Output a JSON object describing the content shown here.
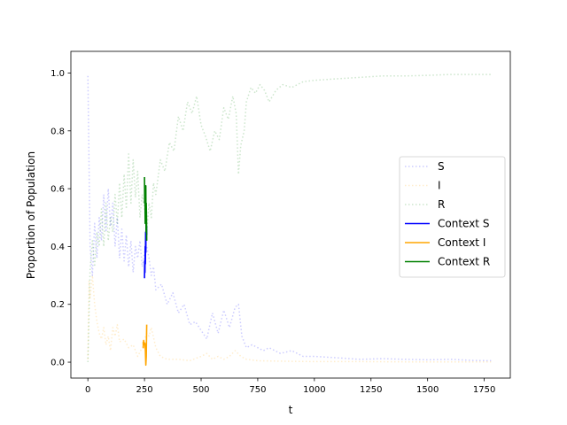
{
  "chart_data": {
    "type": "line",
    "title": "",
    "xlabel": "t",
    "ylabel": "Proportion of Population",
    "xlim": [
      -75,
      1865
    ],
    "ylim": [
      -0.055,
      1.075
    ],
    "xticks": [
      0,
      250,
      500,
      750,
      1000,
      1250,
      1500,
      1750
    ],
    "yticks": [
      0.0,
      0.2,
      0.4,
      0.6,
      0.8,
      1.0
    ],
    "xtick_labels": [
      "0",
      "250",
      "500",
      "750",
      "1000",
      "1250",
      "1500",
      "1750"
    ],
    "ytick_labels": [
      "0.0",
      "0.2",
      "0.4",
      "0.6",
      "0.8",
      "1.0"
    ],
    "grid": false,
    "legend_position": "center-right",
    "series": [
      {
        "name": "S",
        "color": "#0000ff",
        "style": "dotted",
        "alpha": 0.2,
        "x": [
          0,
          10,
          20,
          30,
          40,
          50,
          60,
          70,
          80,
          90,
          100,
          110,
          120,
          130,
          140,
          150,
          160,
          170,
          180,
          190,
          200,
          210,
          220,
          230,
          240,
          250,
          260,
          270,
          280,
          290,
          300,
          325,
          350,
          375,
          400,
          425,
          450,
          475,
          500,
          525,
          550,
          575,
          600,
          625,
          650,
          665,
          680,
          700,
          725,
          750,
          775,
          800,
          850,
          900,
          950,
          1000,
          1100,
          1200,
          1300,
          1400,
          1500,
          1600,
          1700,
          1780
        ],
        "y": [
          0.99,
          0.4,
          0.3,
          0.48,
          0.36,
          0.5,
          0.42,
          0.58,
          0.45,
          0.6,
          0.47,
          0.55,
          0.4,
          0.5,
          0.36,
          0.46,
          0.35,
          0.44,
          0.33,
          0.42,
          0.31,
          0.4,
          0.36,
          0.42,
          0.33,
          0.38,
          0.4,
          0.36,
          0.3,
          0.33,
          0.25,
          0.27,
          0.2,
          0.24,
          0.17,
          0.2,
          0.13,
          0.14,
          0.11,
          0.08,
          0.17,
          0.1,
          0.18,
          0.12,
          0.19,
          0.2,
          0.09,
          0.05,
          0.06,
          0.05,
          0.04,
          0.05,
          0.03,
          0.04,
          0.02,
          0.02,
          0.015,
          0.01,
          0.012,
          0.01,
          0.008,
          0.01,
          0.006,
          0.005
        ]
      },
      {
        "name": "I",
        "color": "#ffa500",
        "style": "dotted",
        "alpha": 0.2,
        "x": [
          0,
          5,
          10,
          20,
          30,
          40,
          50,
          60,
          70,
          80,
          90,
          100,
          110,
          120,
          130,
          140,
          160,
          180,
          200,
          220,
          240,
          250,
          260,
          270,
          280,
          300,
          320,
          350,
          400,
          450,
          500,
          525,
          550,
          575,
          600,
          625,
          650,
          675,
          700,
          750,
          800,
          900,
          1000,
          1200,
          1400,
          1600,
          1780
        ],
        "y": [
          0.01,
          0.28,
          0.22,
          0.3,
          0.2,
          0.14,
          0.1,
          0.08,
          0.12,
          0.06,
          0.09,
          0.04,
          0.12,
          0.09,
          0.13,
          0.07,
          0.08,
          0.05,
          0.06,
          0.02,
          0.05,
          0.08,
          0.1,
          0.09,
          0.12,
          0.05,
          0.02,
          0.01,
          0.01,
          0.005,
          0.02,
          0.03,
          0.01,
          0.02,
          0.01,
          0.02,
          0.04,
          0.02,
          0.01,
          0.005,
          0.004,
          0.003,
          0.002,
          0.002,
          0.001,
          0.001,
          0.001
        ]
      },
      {
        "name": "R",
        "color": "#008000",
        "style": "dotted",
        "alpha": 0.2,
        "x": [
          0,
          10,
          20,
          30,
          40,
          50,
          60,
          70,
          80,
          90,
          100,
          110,
          120,
          130,
          140,
          150,
          160,
          170,
          180,
          190,
          200,
          210,
          220,
          230,
          240,
          250,
          260,
          270,
          280,
          290,
          300,
          320,
          340,
          360,
          380,
          400,
          420,
          440,
          460,
          480,
          500,
          520,
          540,
          560,
          580,
          600,
          620,
          640,
          655,
          665,
          675,
          690,
          700,
          720,
          740,
          760,
          780,
          800,
          830,
          860,
          900,
          950,
          1000,
          1100,
          1200,
          1300,
          1400,
          1500,
          1600,
          1700,
          1780
        ],
        "y": [
          0.0,
          0.32,
          0.42,
          0.33,
          0.45,
          0.4,
          0.53,
          0.4,
          0.55,
          0.42,
          0.5,
          0.45,
          0.58,
          0.48,
          0.62,
          0.5,
          0.65,
          0.53,
          0.72,
          0.55,
          0.7,
          0.57,
          0.66,
          0.5,
          0.58,
          0.53,
          0.45,
          0.55,
          0.5,
          0.62,
          0.58,
          0.7,
          0.66,
          0.76,
          0.73,
          0.85,
          0.8,
          0.9,
          0.86,
          0.92,
          0.82,
          0.78,
          0.73,
          0.8,
          0.77,
          0.88,
          0.84,
          0.92,
          0.86,
          0.65,
          0.75,
          0.8,
          0.9,
          0.95,
          0.93,
          0.96,
          0.94,
          0.9,
          0.94,
          0.96,
          0.95,
          0.97,
          0.975,
          0.98,
          0.985,
          0.99,
          0.99,
          0.992,
          0.995,
          0.995,
          0.995
        ]
      },
      {
        "name": "Context S",
        "color": "#0000ff",
        "style": "solid",
        "alpha": 1.0,
        "x": [
          250,
          251,
          252,
          253,
          254,
          255,
          256,
          257,
          258,
          259,
          260
        ],
        "y": [
          0.29,
          0.35,
          0.31,
          0.4,
          0.34,
          0.45,
          0.38,
          0.5,
          0.43,
          0.47,
          0.44
        ]
      },
      {
        "name": "Context I",
        "color": "#ffa500",
        "style": "solid",
        "alpha": 1.0,
        "x": [
          244,
          245,
          246,
          247,
          248,
          250,
          252,
          254,
          256,
          258,
          260
        ],
        "y": [
          0.07,
          0.05,
          0.075,
          0.06,
          0.07,
          0.06,
          0.065,
          0.04,
          -0.01,
          0.02,
          0.13
        ]
      },
      {
        "name": "Context R",
        "color": "#008000",
        "style": "solid",
        "alpha": 1.0,
        "x": [
          250,
          251,
          252,
          253,
          254,
          255,
          256,
          257,
          258,
          259,
          260
        ],
        "y": [
          0.64,
          0.55,
          0.6,
          0.48,
          0.58,
          0.5,
          0.61,
          0.45,
          0.55,
          0.5,
          0.42
        ]
      }
    ]
  }
}
